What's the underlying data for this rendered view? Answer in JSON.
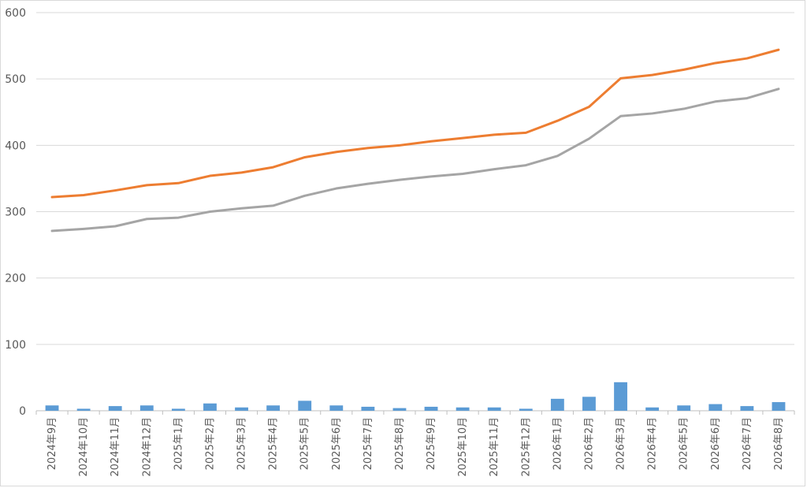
{
  "chart_data": {
    "type": "line",
    "title": "",
    "xlabel": "",
    "ylabel": "",
    "ylim": [
      0,
      600
    ],
    "yticks": [
      0,
      100,
      200,
      300,
      400,
      500,
      600
    ],
    "grid": true,
    "legend": "none",
    "categories": [
      "2024年9月",
      "2024年10月",
      "2024年11月",
      "2024年12月",
      "2025年1月",
      "2025年2月",
      "2025年3月",
      "2025年4月",
      "2025年5月",
      "2025年6月",
      "2025年7月",
      "2025年8月",
      "2025年9月",
      "2025年10月",
      "2025年11月",
      "2025年12月",
      "2026年1月",
      "2026年2月",
      "2026年3月",
      "2026年4月",
      "2026年5月",
      "2026年6月",
      "2026年7月",
      "2026年8月"
    ],
    "series": [
      {
        "type": "bar",
        "color": "#5b9bd5",
        "values": [
          8,
          3,
          7,
          8,
          3,
          11,
          5,
          8,
          15,
          8,
          6,
          4,
          6,
          5,
          5,
          3,
          18,
          21,
          43,
          5,
          8,
          10,
          7,
          13
        ]
      },
      {
        "type": "line",
        "color": "#ed7d31",
        "values": [
          322,
          325,
          332,
          340,
          343,
          354,
          359,
          367,
          382,
          390,
          396,
          400,
          406,
          411,
          416,
          419,
          437,
          458,
          501,
          506,
          514,
          524,
          531,
          544
        ]
      },
      {
        "type": "line",
        "color": "#a5a5a5",
        "values": [
          271,
          274,
          278,
          289,
          291,
          300,
          305,
          309,
          324,
          335,
          342,
          348,
          353,
          357,
          364,
          370,
          384,
          410,
          444,
          448,
          455,
          466,
          471,
          485
        ]
      }
    ]
  }
}
